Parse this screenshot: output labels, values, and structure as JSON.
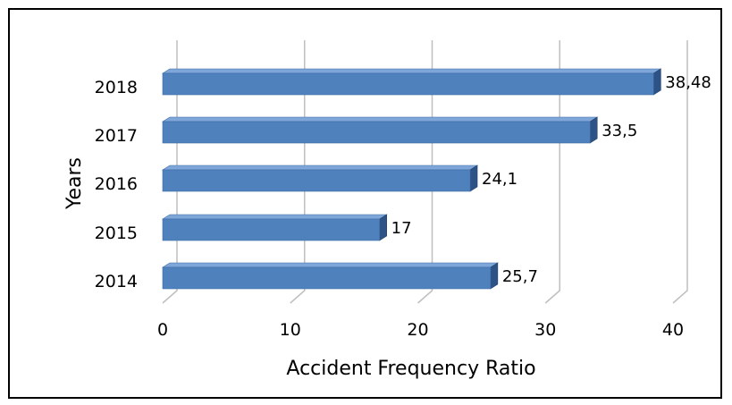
{
  "chart_data": {
    "type": "bar",
    "orientation": "horizontal",
    "style": "3d",
    "title": "",
    "xlabel": "Accident Frequency Ratio",
    "ylabel": "Years",
    "xlim": [
      0,
      40
    ],
    "x_ticks": [
      "0",
      "10",
      "20",
      "30",
      "40"
    ],
    "x_tick_values": [
      0,
      10,
      20,
      30,
      40
    ],
    "grid": "vertical",
    "legend": "none",
    "categories": [
      "2018",
      "2017",
      "2016",
      "2015",
      "2014"
    ],
    "values": [
      38.48,
      33.5,
      24.1,
      17,
      25.7
    ],
    "value_labels": [
      "38,48",
      "33,5",
      "24,1",
      "17",
      "25,7"
    ],
    "colors": {
      "bar_front": "#4F81BD",
      "bar_top": "#7FA6D8",
      "bar_side": "#2D5386",
      "gridline": "#BFBFBF"
    }
  }
}
